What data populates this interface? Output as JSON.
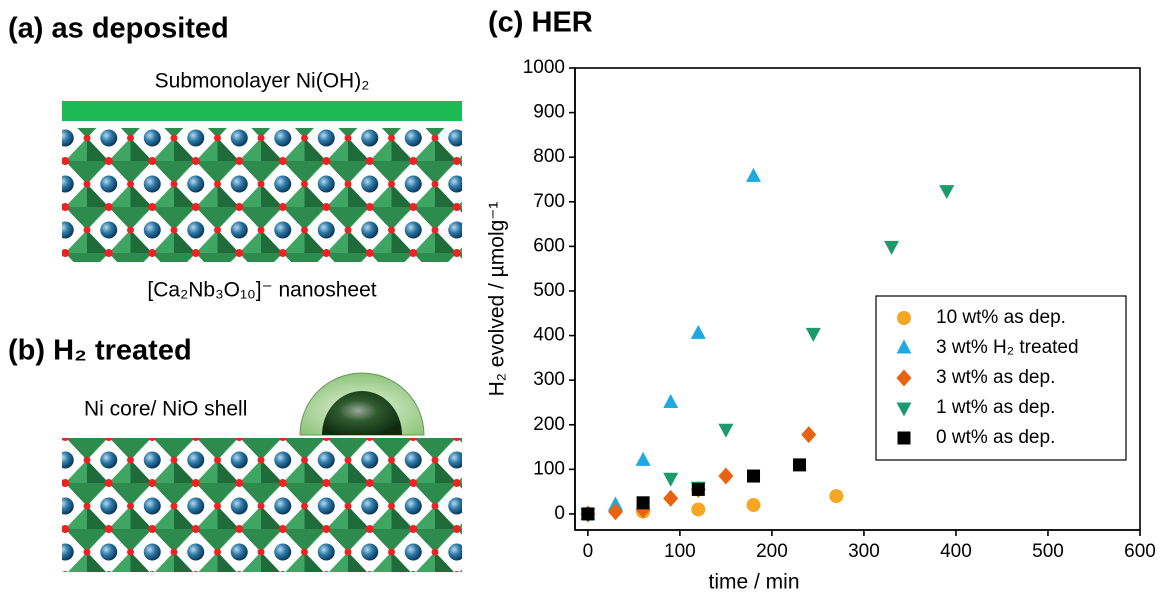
{
  "panels": {
    "a_label": "(a) as deposited",
    "a_top": "Submonolayer Ni(OH)₂",
    "a_bottom": "[Ca₂Nb₃O₁₀]⁻ nanosheet",
    "b_label": "(b) H₂ treated",
    "b_text": "Ni core/ NiO shell"
  },
  "chart_data": {
    "type": "scatter",
    "title": "(c) HER",
    "x_label": "time / min",
    "y_label": "H₂ evolved / µmolg⁻¹",
    "xlim": [
      -14,
      600
    ],
    "ylim": [
      -36,
      1000
    ],
    "xticks": [
      0,
      100,
      200,
      300,
      400,
      500,
      600
    ],
    "yticks": [
      0,
      100,
      200,
      300,
      400,
      500,
      600,
      700,
      800,
      900,
      1000
    ],
    "legend": "lower right",
    "series": [
      {
        "name": "10 wt% as dep.",
        "color": "#f5a623",
        "marker": "circle",
        "x": [
          0,
          60,
          120,
          180,
          270
        ],
        "values": [
          0,
          5,
          10,
          20,
          40
        ]
      },
      {
        "name": "3 wt% H₂ treated",
        "color": "#1fa9e1",
        "marker": "triangle-up",
        "x": [
          0,
          30,
          60,
          90,
          120,
          180
        ],
        "values": [
          0,
          20,
          120,
          250,
          405,
          757
        ]
      },
      {
        "name": "3 wt% as dep.",
        "color": "#e8620f",
        "marker": "diamond",
        "x": [
          0,
          30,
          60,
          90,
          120,
          150,
          240
        ],
        "values": [
          0,
          5,
          10,
          35,
          55,
          85,
          178
        ]
      },
      {
        "name": "1 wt% as dep.",
        "color": "#1b9a6c",
        "marker": "triangle-down",
        "x": [
          0,
          90,
          120,
          150,
          245,
          330,
          390
        ],
        "values": [
          0,
          80,
          60,
          190,
          405,
          600,
          725
        ]
      },
      {
        "name": "0 wt% as dep.",
        "color": "#000000",
        "marker": "square",
        "x": [
          0,
          60,
          120,
          180,
          230
        ],
        "values": [
          0,
          25,
          55,
          85,
          110
        ]
      }
    ]
  }
}
